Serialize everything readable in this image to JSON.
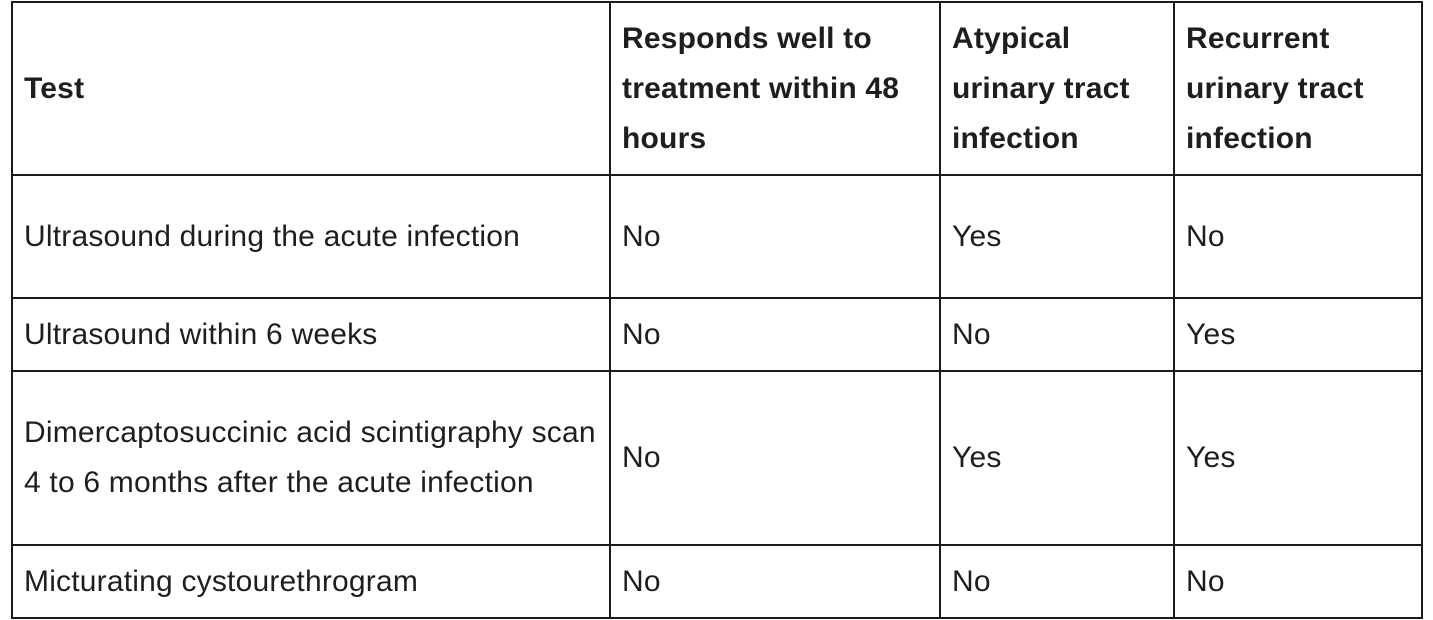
{
  "table": {
    "headers": [
      "Test",
      "Responds well to treatment within 48 hours",
      "Atypical urinary tract infection",
      "Recurrent urinary tract infection"
    ],
    "rows": [
      [
        "Ultrasound during the acute infection",
        "No",
        "Yes",
        "No"
      ],
      [
        "Ultrasound within 6 weeks",
        "No",
        "No",
        "Yes"
      ],
      [
        "Dimercaptosuccinic acid scintigraphy scan 4 to 6 months after the acute infection",
        "No",
        "Yes",
        "Yes"
      ],
      [
        "Micturating cystourethrogram",
        "No",
        "No",
        "No"
      ]
    ]
  }
}
